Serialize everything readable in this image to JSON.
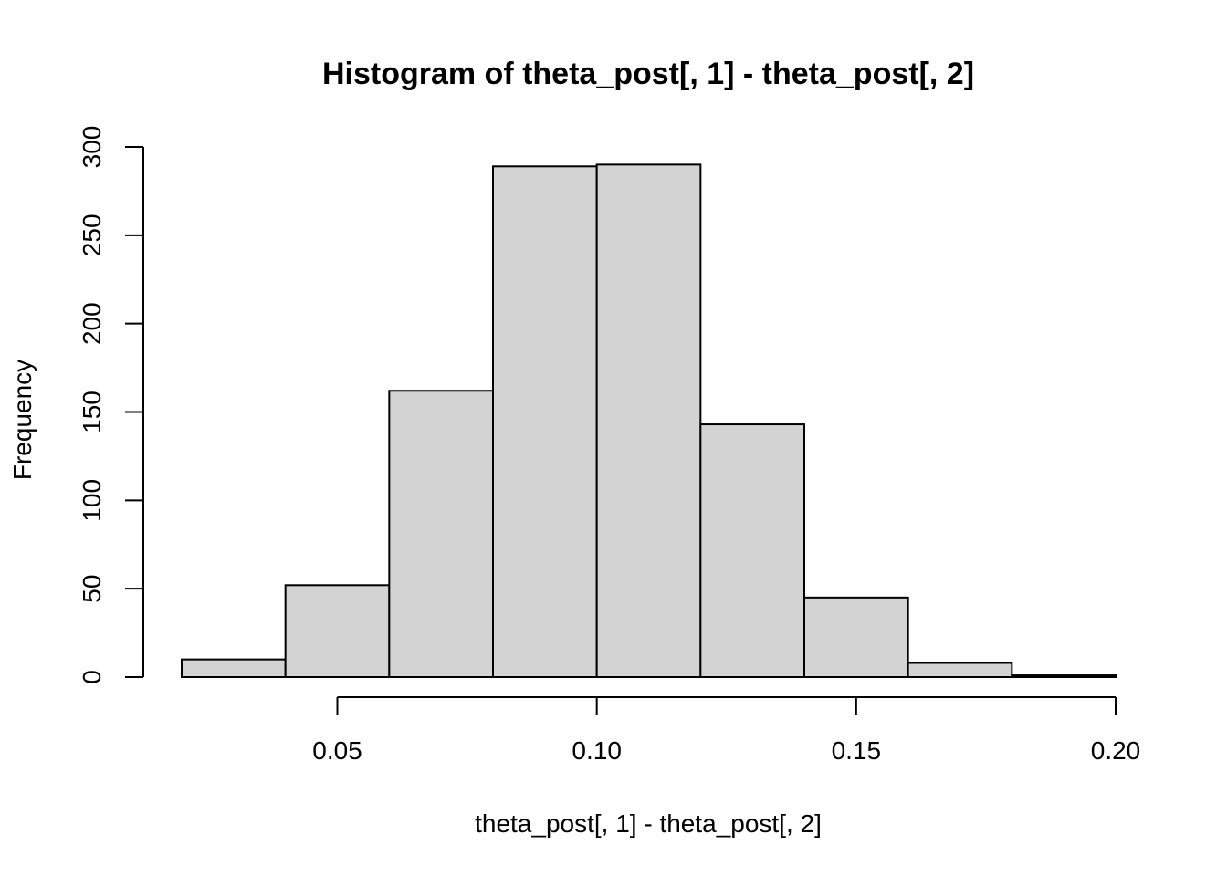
{
  "chart_data": {
    "type": "bar",
    "title": "Histogram of theta_post[, 1] - theta_post[, 2]",
    "xlabel": "theta_post[, 1] - theta_post[, 2]",
    "ylabel": "Frequency",
    "bins": [
      {
        "start": 0.02,
        "end": 0.04,
        "count": 10
      },
      {
        "start": 0.04,
        "end": 0.06,
        "count": 52
      },
      {
        "start": 0.06,
        "end": 0.08,
        "count": 162
      },
      {
        "start": 0.08,
        "end": 0.1,
        "count": 289
      },
      {
        "start": 0.1,
        "end": 0.12,
        "count": 290
      },
      {
        "start": 0.12,
        "end": 0.14,
        "count": 143
      },
      {
        "start": 0.14,
        "end": 0.16,
        "count": 45
      },
      {
        "start": 0.16,
        "end": 0.18,
        "count": 8
      },
      {
        "start": 0.18,
        "end": 0.2,
        "count": 1
      }
    ],
    "x_ticks": [
      {
        "value": 0.05,
        "label": "0.05"
      },
      {
        "value": 0.1,
        "label": "0.10"
      },
      {
        "value": 0.15,
        "label": "0.15"
      },
      {
        "value": 0.2,
        "label": "0.20"
      }
    ],
    "y_ticks": [
      {
        "value": 0,
        "label": "0"
      },
      {
        "value": 50,
        "label": "50"
      },
      {
        "value": 100,
        "label": "100"
      },
      {
        "value": 150,
        "label": "150"
      },
      {
        "value": 200,
        "label": "200"
      },
      {
        "value": 250,
        "label": "250"
      },
      {
        "value": 300,
        "label": "300"
      }
    ],
    "xlim": [
      0.02,
      0.2
    ],
    "ylim": [
      0,
      300
    ],
    "grid": false,
    "bar_color": "#d3d3d3",
    "edge_color": "#000000"
  }
}
